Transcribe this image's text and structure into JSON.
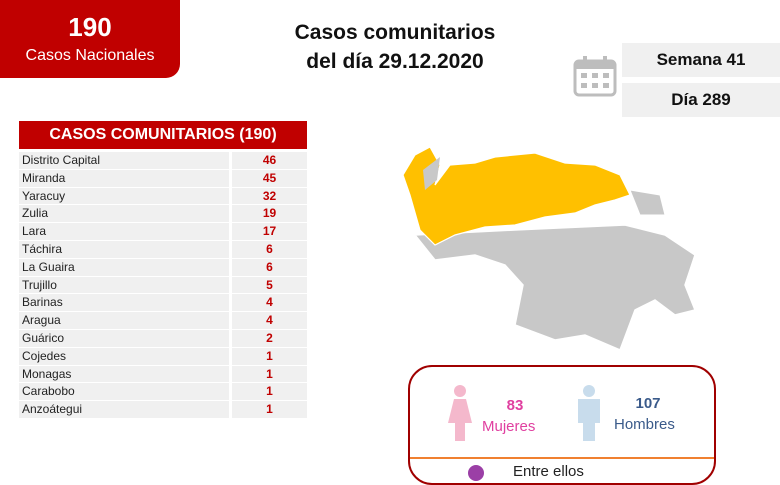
{
  "national": {
    "count": "190",
    "label": "Casos Nacionales"
  },
  "title": {
    "line1": "Casos comunitarios",
    "line2": "del día 29.12.2020"
  },
  "week": "Semana 41",
  "day": "Día 289",
  "table": {
    "header": "CASOS COMUNITARIOS (190)",
    "rows": [
      {
        "state": "Distrito Capital",
        "cases": "46"
      },
      {
        "state": "Miranda",
        "cases": "45"
      },
      {
        "state": "Yaracuy",
        "cases": "32"
      },
      {
        "state": "Zulia",
        "cases": "19"
      },
      {
        "state": "Lara",
        "cases": "17"
      },
      {
        "state": "Táchira",
        "cases": "6"
      },
      {
        "state": "La Guaira",
        "cases": "6"
      },
      {
        "state": "Trujillo",
        "cases": "5"
      },
      {
        "state": "Barinas",
        "cases": "4"
      },
      {
        "state": "Aragua",
        "cases": "4"
      },
      {
        "state": "Guárico",
        "cases": "2"
      },
      {
        "state": "Cojedes",
        "cases": "1"
      },
      {
        "state": "Monagas",
        "cases": "1"
      },
      {
        "state": "Carabobo",
        "cases": "1"
      },
      {
        "state": "Anzoátegui",
        "cases": "1"
      }
    ]
  },
  "gender": {
    "women_count": "83",
    "women_label": "Mujeres",
    "men_count": "107",
    "men_label": "Hombres",
    "partial_text": "Entre ellos"
  },
  "colors": {
    "red": "#c00000",
    "highlight": "#ffc000",
    "map_gray": "#c8c8c8",
    "women": "#e040a0",
    "men": "#3a5a8a"
  }
}
